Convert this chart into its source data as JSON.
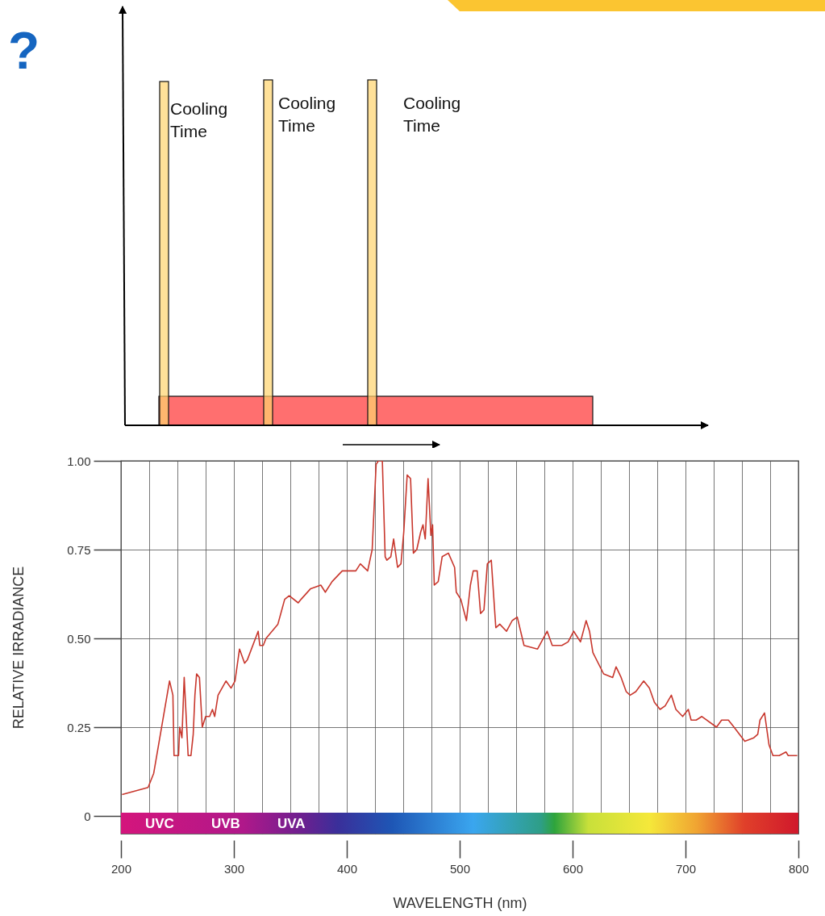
{
  "chart_data": [
    {
      "type": "other",
      "annotations": [
        "?",
        "Cooling Time",
        "Cooling Time",
        "Cooling Time"
      ]
    },
    {
      "type": "line",
      "xlabel": "WAVELENGTH (nm)",
      "ylabel": "RELATIVE IRRADIANCE",
      "x": [
        201,
        224,
        229,
        243,
        246,
        247,
        251,
        252,
        254,
        256,
        259.5,
        262,
        264,
        265.5,
        267,
        269.5,
        272,
        275,
        278.5,
        281,
        283,
        286,
        293,
        297.5,
        301,
        305,
        309.5,
        312,
        321.5,
        323,
        326,
        328.5,
        339,
        345,
        349,
        357,
        359.5,
        368,
        377,
        381,
        387,
        396,
        400,
        408,
        412,
        418.5,
        422.5,
        426,
        428,
        431.5,
        434,
        435.5,
        439,
        441.5,
        445,
        448,
        450.5,
        453.5,
        456.5,
        459,
        462,
        465.5,
        467.5,
        469.5,
        472,
        474.5,
        476,
        477.5,
        481,
        484.5,
        490,
        495.5,
        497,
        501,
        506,
        509.5,
        512,
        515.5,
        518.5,
        521.5,
        524.5,
        528,
        532,
        535.5,
        541.5,
        546.5,
        551,
        557,
        569,
        577.5,
        582,
        590.5,
        596,
        601,
        607,
        612,
        615,
        618,
        627.5,
        635.5,
        638.5,
        643,
        647.5,
        651,
        656,
        663,
        668,
        672.5,
        677.5,
        682,
        687.5,
        691.5,
        697.5,
        702.5,
        705,
        709.5,
        714.5,
        727.5,
        732,
        738,
        743,
        752.5,
        760.5,
        764,
        766,
        770,
        774,
        777.5,
        783,
        789,
        791,
        799
      ],
      "series": [
        {
          "color": "#c8372d",
          "values": [
            0.06,
            0.08,
            0.12,
            0.38,
            0.34,
            0.17,
            0.17,
            0.25,
            0.22,
            0.39,
            0.17,
            0.17,
            0.23,
            0.34,
            0.4,
            0.39,
            0.25,
            0.28,
            0.28,
            0.3,
            0.28,
            0.34,
            0.38,
            0.36,
            0.38,
            0.47,
            0.43,
            0.44,
            0.52,
            0.48,
            0.48,
            0.5,
            0.54,
            0.61,
            0.62,
            0.6,
            0.61,
            0.64,
            0.65,
            0.63,
            0.66,
            0.69,
            0.69,
            0.69,
            0.71,
            0.69,
            0.75,
            0.99,
            1.0,
            1.0,
            0.73,
            0.72,
            0.73,
            0.78,
            0.7,
            0.71,
            0.8,
            0.96,
            0.95,
            0.74,
            0.75,
            0.8,
            0.82,
            0.78,
            0.95,
            0.79,
            0.82,
            0.65,
            0.66,
            0.73,
            0.74,
            0.7,
            0.63,
            0.61,
            0.55,
            0.65,
            0.69,
            0.69,
            0.57,
            0.58,
            0.71,
            0.72,
            0.53,
            0.54,
            0.52,
            0.55,
            0.56,
            0.48,
            0.47,
            0.52,
            0.48,
            0.48,
            0.49,
            0.52,
            0.49,
            0.55,
            0.52,
            0.46,
            0.4,
            0.39,
            0.42,
            0.39,
            0.35,
            0.34,
            0.35,
            0.38,
            0.36,
            0.32,
            0.3,
            0.31,
            0.34,
            0.3,
            0.28,
            0.3,
            0.27,
            0.27,
            0.28,
            0.25,
            0.27,
            0.27,
            0.25,
            0.21,
            0.22,
            0.23,
            0.27,
            0.29,
            0.2,
            0.17,
            0.17,
            0.18,
            0.17,
            0.17
          ]
        }
      ],
      "xlim": [
        200,
        800
      ],
      "xticks": [
        200,
        {
          "value": 225,
          "label": null
        },
        {
          "value": 250,
          "label": null
        },
        {
          "value": 275,
          "label": null
        },
        300,
        {
          "value": 325,
          "label": null
        },
        {
          "value": 350,
          "label": null
        },
        {
          "value": 375,
          "label": null
        },
        400,
        {
          "value": 425,
          "label": null
        },
        {
          "value": 450,
          "label": null
        },
        {
          "value": 475,
          "label": null
        },
        500,
        {
          "value": 525,
          "label": null
        },
        {
          "value": 550,
          "label": null
        },
        {
          "value": 575,
          "label": null
        },
        600,
        {
          "value": 625,
          "label": null
        },
        {
          "value": 650,
          "label": null
        },
        {
          "value": 675,
          "label": null
        },
        700,
        {
          "value": 725,
          "label": null
        },
        {
          "value": 750,
          "label": null
        },
        {
          "value": 775,
          "label": null
        },
        800
      ],
      "ylim": [
        -0.05,
        1
      ],
      "yticks": [
        0,
        0.25,
        {
          "value": 0.5,
          "label": "0.50"
        },
        0.75,
        {
          "value": 1,
          "label": "1.00"
        }
      ],
      "grid": true,
      "annotations": [
        "UVC",
        "UVB",
        "UVA"
      ]
    }
  ]
}
